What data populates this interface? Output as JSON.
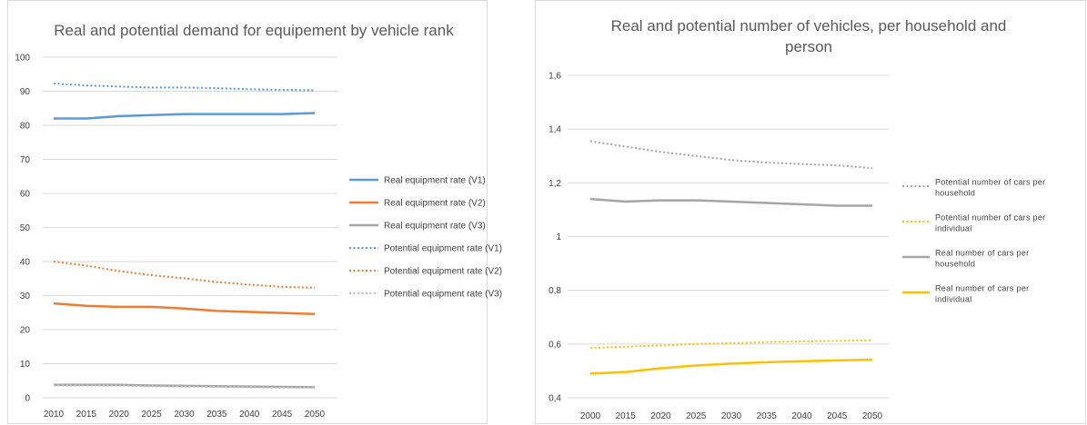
{
  "chart_data": [
    {
      "type": "line",
      "title": "Real and potential demand for equipement by vehicle rank",
      "xlabel": "",
      "ylabel": "",
      "x": [
        "2010",
        "2015",
        "2020",
        "2025",
        "2030",
        "2035",
        "2040",
        "2045",
        "2050"
      ],
      "ylim": [
        0,
        100
      ],
      "yticks": [
        "0",
        "10",
        "20",
        "30",
        "40",
        "50",
        "60",
        "70",
        "80",
        "90",
        "100"
      ],
      "grid": true,
      "legend": "right",
      "series": [
        {
          "name": "Real equipment rate (V1)",
          "values": [
            82.0,
            82.0,
            82.7,
            83.0,
            83.3,
            83.3,
            83.3,
            83.3,
            83.6
          ],
          "color": "#5b9bd5",
          "dash": "solid"
        },
        {
          "name": "Real equipment rate (V2)",
          "values": [
            27.7,
            27.0,
            26.7,
            26.7,
            26.2,
            25.5,
            25.2,
            24.9,
            24.6
          ],
          "color": "#ed7d31",
          "dash": "solid"
        },
        {
          "name": "Real equipment rate (V3)",
          "values": [
            3.8,
            3.8,
            3.8,
            3.6,
            3.5,
            3.4,
            3.3,
            3.2,
            3.1
          ],
          "color": "#a5a5a5",
          "dash": "solid"
        },
        {
          "name": "Potential equipment rate (V1)",
          "values": [
            92.3,
            91.7,
            91.4,
            91.1,
            91.1,
            90.9,
            90.6,
            90.4,
            90.3
          ],
          "color": "#5b9bd5",
          "dash": "dot"
        },
        {
          "name": "Potential equipment rate (V2)",
          "values": [
            40.0,
            38.8,
            37.2,
            36.0,
            35.1,
            34.0,
            33.2,
            32.6,
            32.3
          ],
          "color": "#ed7d31",
          "dash": "dot"
        },
        {
          "name": "Potential equipment rate (V3)",
          "values": [
            3.6,
            3.6,
            3.6,
            3.4,
            3.3,
            3.2,
            3.1,
            3.0,
            3.0
          ],
          "color": "#bfbfbf",
          "dash": "dot"
        }
      ]
    },
    {
      "type": "line",
      "title": "Real and potential number of vehicles, per household and person",
      "xlabel": "",
      "ylabel": "",
      "x": [
        "2000",
        "2015",
        "2020",
        "2025",
        "2030",
        "2035",
        "2040",
        "2045",
        "2050"
      ],
      "ylim": [
        0.4,
        1.6
      ],
      "yticks": [
        "0,4",
        "0,6",
        "0,8",
        "1",
        "1,2",
        "1,4",
        "1,6"
      ],
      "grid": true,
      "legend": "right",
      "series": [
        {
          "name": "Potential number of cars per household",
          "values": [
            1.355,
            1.335,
            1.315,
            1.3,
            1.285,
            1.275,
            1.27,
            1.265,
            1.255
          ],
          "color": "#a5a5a5",
          "dash": "dot"
        },
        {
          "name": "Potential number of cars per individual",
          "values": [
            0.585,
            0.59,
            0.595,
            0.6,
            0.603,
            0.607,
            0.61,
            0.612,
            0.614
          ],
          "color": "#ffc000",
          "dash": "dot"
        },
        {
          "name": "Real number of cars per household",
          "values": [
            1.14,
            1.13,
            1.135,
            1.135,
            1.13,
            1.125,
            1.12,
            1.115,
            1.115
          ],
          "color": "#a5a5a5",
          "dash": "solid"
        },
        {
          "name": "Real number of cars per individual",
          "values": [
            0.49,
            0.496,
            0.51,
            0.52,
            0.527,
            0.532,
            0.536,
            0.539,
            0.542
          ],
          "color": "#ffc000",
          "dash": "solid"
        }
      ]
    }
  ]
}
